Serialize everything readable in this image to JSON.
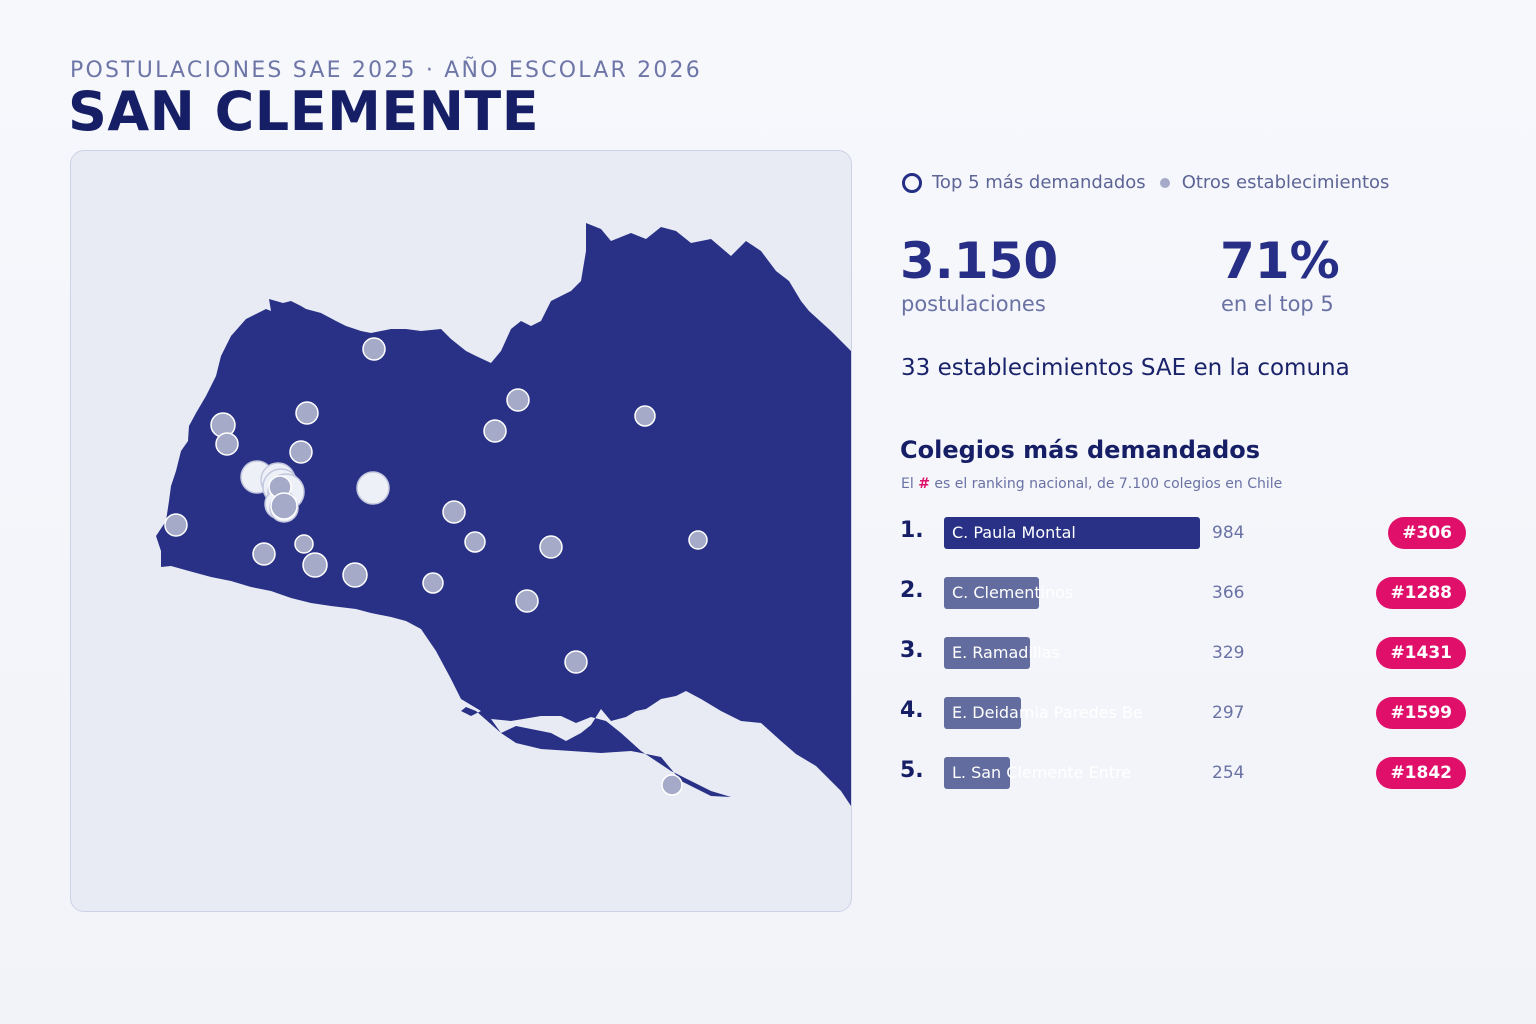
{
  "header": {
    "eyebrow": "POSTULACIONES SAE 2025 · AÑO ESCOLAR 2026",
    "title": "SAN CLEMENTE"
  },
  "legend": {
    "top5_label": "Top 5 más demandados",
    "others_label": "Otros establecimientos"
  },
  "kpis": [
    {
      "value": "3.150",
      "label": "postulaciones"
    },
    {
      "value": "71%",
      "label": "en el top 5"
    }
  ],
  "schools_count_text": "33 establecimientos SAE en la comuna",
  "ranking": {
    "title": "Colegios más demandados",
    "note_prefix": "El ",
    "note_hash": "#",
    "note_suffix": " es el ranking nacional, de 7.100 colegios en Chile"
  },
  "colors": {
    "commune_fill": "#283186",
    "top_bar": "#283186",
    "other_bar": "#626c9f",
    "badge": "#e0106a",
    "point": "#a5aac8"
  },
  "chart_data": {
    "type": "bar",
    "categories": [
      "C. Paula Montal",
      "C. Clementinos",
      "E. Ramadillas",
      "E. Deidamia Paredes Be",
      "L. San Clemente Entre"
    ],
    "ranks": [
      "1.",
      "2.",
      "3.",
      "4.",
      "5."
    ],
    "values": [
      984,
      366,
      329,
      297,
      254
    ],
    "national_rank": [
      "#306",
      "#1288",
      "#1431",
      "#1599",
      "#1842"
    ]
  }
}
